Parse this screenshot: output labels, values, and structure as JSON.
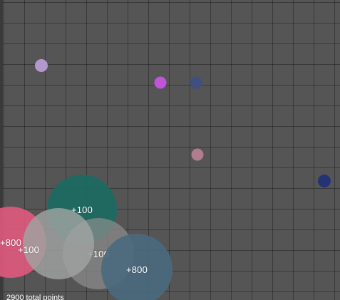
{
  "game": {
    "total_label": "2900 total points"
  },
  "food_dots": [
    {
      "name": "food-dot-lavender",
      "color": "#b199cf"
    },
    {
      "name": "food-dot-magenta",
      "color": "#c154d8"
    },
    {
      "name": "food-dot-slate-blue",
      "color": "#3f4f80"
    },
    {
      "name": "food-dot-pink",
      "color": "#b07c8e"
    },
    {
      "name": "food-dot-navy",
      "color": "#243376"
    }
  ],
  "blobs": [
    {
      "name": "blob-teal",
      "label": "+100",
      "color": "#1b6a62"
    },
    {
      "name": "blob-pink",
      "label": "+800",
      "color": "#e05a7e"
    },
    {
      "name": "blob-gray-dark",
      "label": "+100",
      "color": "#777a78"
    },
    {
      "name": "blob-gray-light",
      "label": "+100",
      "color": "#9a9f9c"
    },
    {
      "name": "blob-steel-blue",
      "label": "+800",
      "color": "#4a6a80"
    }
  ]
}
